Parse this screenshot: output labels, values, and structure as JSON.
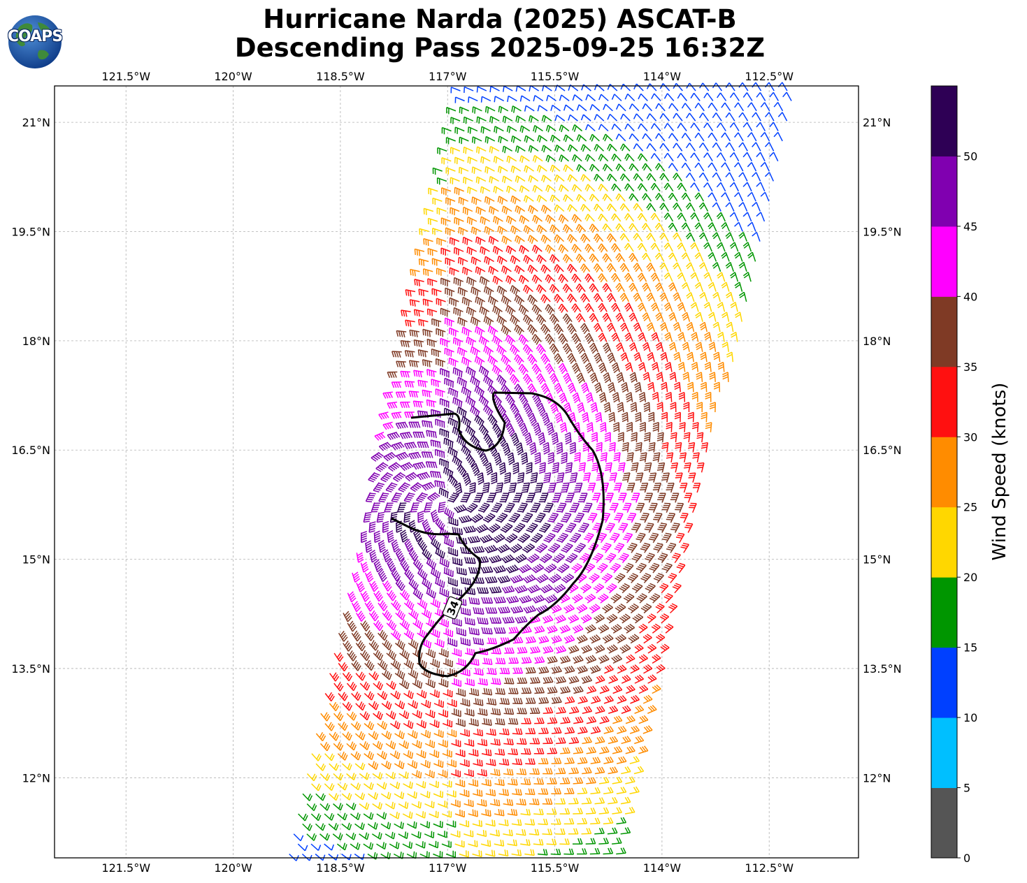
{
  "title": {
    "line1": "Hurricane Narda (2025) ASCAT-B",
    "line2": "Descending Pass 2025-09-25 16:32Z"
  },
  "logo": {
    "text": "COAPS",
    "icon": "globe-logo-icon"
  },
  "map": {
    "lon_range": [
      -122.5,
      -111.25
    ],
    "lat_range": [
      10.9,
      21.5
    ],
    "lon_ticks": [
      -121.5,
      -120,
      -118.5,
      -117,
      -115.5,
      -114,
      -112.5
    ],
    "lon_tick_labels": [
      "121.5°W",
      "120°W",
      "118.5°W",
      "117°W",
      "115.5°W",
      "114°W",
      "112.5°W"
    ],
    "lat_ticks": [
      21,
      19.5,
      18,
      16.5,
      15,
      13.5,
      12
    ],
    "lat_tick_labels": [
      "21°N",
      "19.5°N",
      "18°N",
      "16.5°N",
      "15°N",
      "13.5°N",
      "12°N"
    ],
    "grid": true,
    "storm_center": {
      "lon": -117.0,
      "lat": 15.8
    },
    "contour_label": "34"
  },
  "colorbar": {
    "label": "Wind Speed (knots)",
    "tick_labels": [
      "0",
      "5",
      "10",
      "15",
      "20",
      "25",
      "30",
      "35",
      "40",
      "45",
      "50"
    ],
    "bins": [
      {
        "min": 0,
        "max": 5,
        "color": "#555555"
      },
      {
        "min": 5,
        "max": 10,
        "color": "#00bfff"
      },
      {
        "min": 10,
        "max": 15,
        "color": "#0040ff"
      },
      {
        "min": 15,
        "max": 20,
        "color": "#009600"
      },
      {
        "min": 20,
        "max": 25,
        "color": "#ffd700"
      },
      {
        "min": 25,
        "max": 30,
        "color": "#ff8c00"
      },
      {
        "min": 30,
        "max": 35,
        "color": "#ff1010"
      },
      {
        "min": 35,
        "max": 40,
        "color": "#7f3a25"
      },
      {
        "min": 40,
        "max": 45,
        "color": "#ff00ff"
      },
      {
        "min": 45,
        "max": 50,
        "color": "#8000b0"
      },
      {
        "min": 50,
        "max": 55,
        "color": "#2e0055"
      }
    ]
  }
}
